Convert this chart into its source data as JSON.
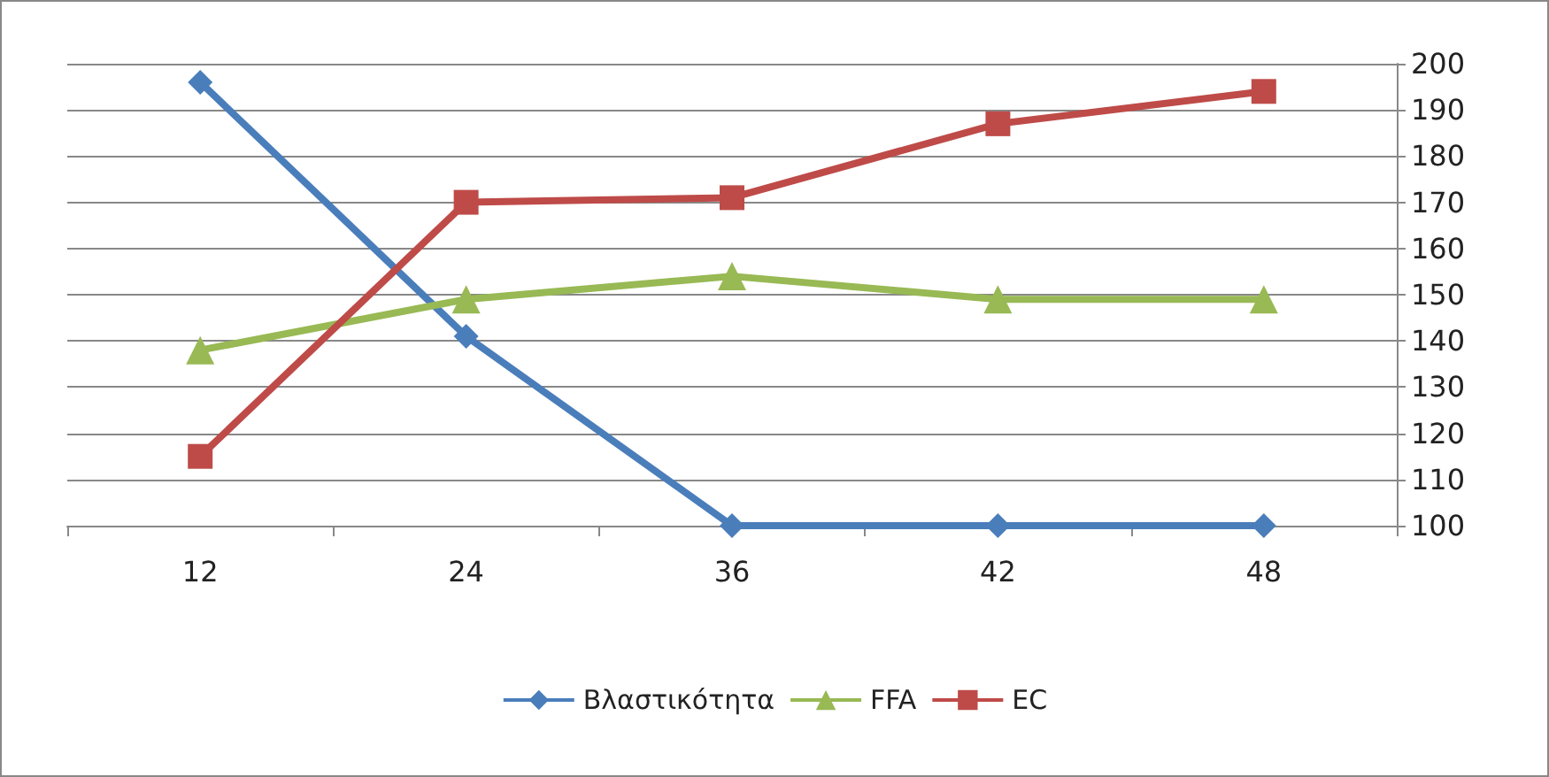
{
  "chart_data": {
    "type": "line",
    "categories": [
      "12",
      "24",
      "36",
      "42",
      "48"
    ],
    "series": [
      {
        "name": "Βλαστικότητα",
        "color": "#4a7ebb",
        "marker": "diamond",
        "values": [
          196,
          141,
          100,
          100,
          100
        ]
      },
      {
        "name": "FFA",
        "color": "#98b954",
        "marker": "triangle",
        "values": [
          138,
          149,
          154,
          149,
          149
        ]
      },
      {
        "name": "EC",
        "color": "#be4b48",
        "marker": "square",
        "values": [
          115,
          170,
          171,
          187,
          194
        ]
      }
    ],
    "ylim": [
      100,
      200
    ],
    "yticks": [
      100,
      110,
      120,
      130,
      140,
      150,
      160,
      170,
      180,
      190,
      200
    ],
    "grid": "y",
    "legend": "bottom"
  }
}
